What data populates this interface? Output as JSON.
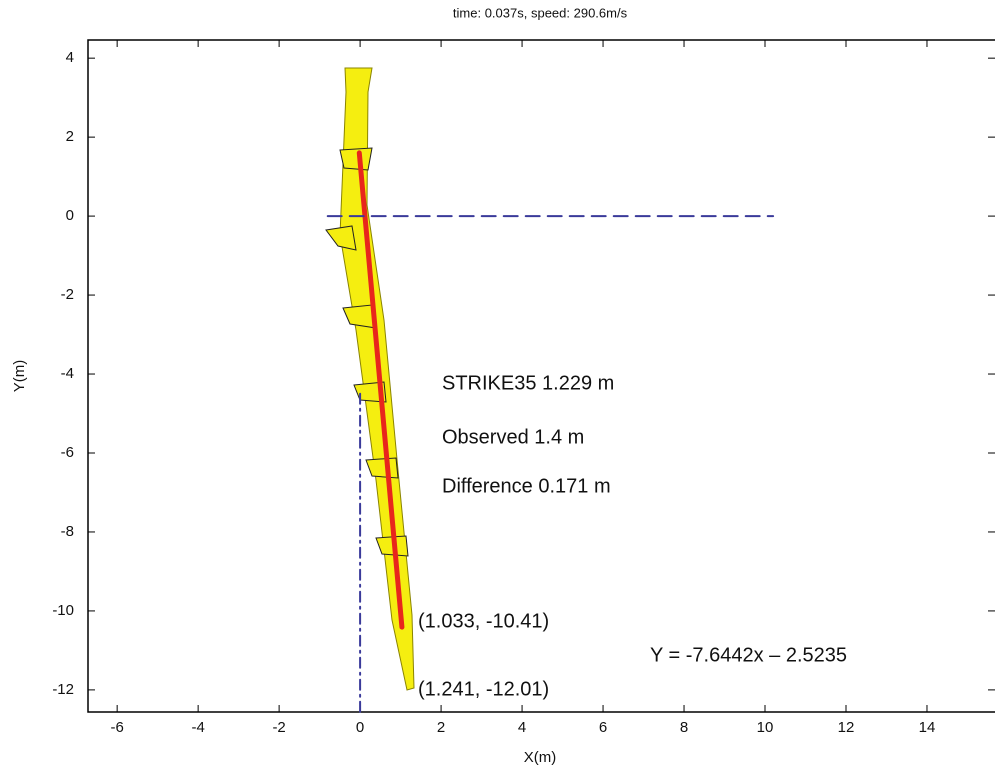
{
  "chart_data": {
    "type": "line",
    "title": "time:  0.037s,  speed:  290.6m/s",
    "x_label": "X(m)",
    "y_label": "Y(m)",
    "xlim": [
      -6.72,
      15.68
    ],
    "ylim": [
      -12.56,
      4.46
    ],
    "xticks": [
      -6,
      -4,
      -2,
      0,
      2,
      4,
      6,
      8,
      10,
      12,
      14
    ],
    "yticks": [
      -12,
      -10,
      -8,
      -6,
      -4,
      -2,
      0,
      2,
      4
    ],
    "series": [
      {
        "color": "#e8261c",
        "style": "solid",
        "x": [
          -0.02,
          1.033
        ],
        "values": [
          1.6,
          -10.41
        ]
      },
      {
        "color": "#3a3a9a",
        "style": "dashed",
        "x": [
          -0.8,
          10.2
        ],
        "values": [
          0,
          0
        ]
      },
      {
        "color": "#3a3a9a",
        "style": "dashdot",
        "x": [
          0,
          0
        ],
        "values": [
          -4.5,
          -12.56
        ]
      }
    ],
    "annotations": [
      "STRIKE35 1.229 m",
      "Observed 1.4 m",
      "Difference 0.171 m",
      "(1.033, -10.41)",
      "(1.241, -12.01)",
      "Y = -7.6442x – 2.5235"
    ]
  }
}
